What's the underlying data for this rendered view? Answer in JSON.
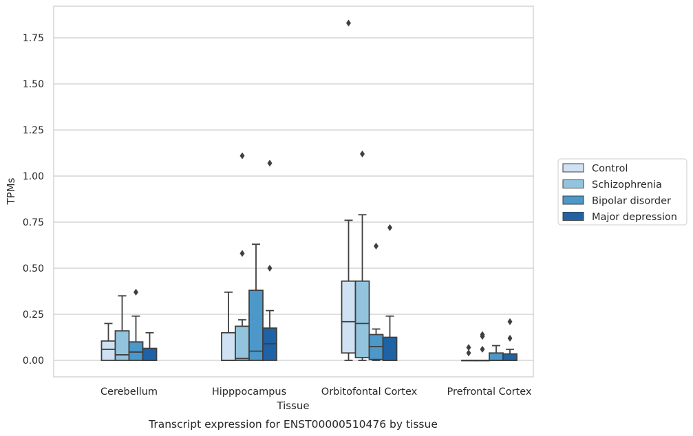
{
  "chart_data": {
    "type": "box",
    "title": "",
    "caption": "Transcript expression for ENST00000510476 by tissue",
    "xlabel": "Tissue",
    "ylabel": "TPMs",
    "ylim": [
      -0.09,
      1.93
    ],
    "yticks": [
      0.0,
      0.25,
      0.5,
      0.75,
      1.0,
      1.25,
      1.5,
      1.75
    ],
    "ytick_labels": [
      "0.00",
      "0.25",
      "0.50",
      "0.75",
      "1.00",
      "1.25",
      "1.50",
      "1.75"
    ],
    "grid": true,
    "legend_position": "right",
    "categories": [
      "Cerebellum",
      "Hipppocampus",
      "Orbitofontal Cortex",
      "Prefrontal Cortex"
    ],
    "series": [
      {
        "name": "Control",
        "color": "#cfe1f2",
        "boxes": [
          {
            "q1": 0.0,
            "median": 0.06,
            "q3": 0.105,
            "whislo": 0.0,
            "whishi": 0.2,
            "fliers": []
          },
          {
            "q1": 0.0,
            "median": 0.0,
            "q3": 0.15,
            "whislo": 0.0,
            "whishi": 0.37,
            "fliers": []
          },
          {
            "q1": 0.04,
            "median": 0.21,
            "q3": 0.43,
            "whislo": 0.0,
            "whishi": 0.76,
            "fliers": [
              1.83
            ]
          },
          {
            "q1": 0.0,
            "median": 0.0,
            "q3": 0.0,
            "whislo": 0.0,
            "whishi": 0.0,
            "fliers": [
              0.04,
              0.07
            ]
          }
        ]
      },
      {
        "name": "Schizophrenia",
        "color": "#93c4de",
        "boxes": [
          {
            "q1": 0.0,
            "median": 0.03,
            "q3": 0.16,
            "whislo": 0.0,
            "whishi": 0.35,
            "fliers": []
          },
          {
            "q1": 0.0,
            "median": 0.01,
            "q3": 0.185,
            "whislo": 0.0,
            "whishi": 0.22,
            "fliers": [
              0.58,
              1.11
            ]
          },
          {
            "q1": 0.015,
            "median": 0.2,
            "q3": 0.43,
            "whislo": 0.0,
            "whishi": 0.79,
            "fliers": [
              1.12
            ]
          },
          {
            "q1": 0.0,
            "median": 0.0,
            "q3": 0.0,
            "whislo": 0.0,
            "whishi": 0.0,
            "fliers": [
              0.06,
              0.13,
              0.14
            ]
          }
        ]
      },
      {
        "name": "Bipolar disorder",
        "color": "#4b98c9",
        "boxes": [
          {
            "q1": 0.0,
            "median": 0.045,
            "q3": 0.1,
            "whislo": 0.0,
            "whishi": 0.24,
            "fliers": [
              0.37
            ]
          },
          {
            "q1": 0.0,
            "median": 0.05,
            "q3": 0.38,
            "whislo": 0.0,
            "whishi": 0.63,
            "fliers": []
          },
          {
            "q1": 0.005,
            "median": 0.075,
            "q3": 0.14,
            "whislo": 0.0,
            "whishi": 0.17,
            "fliers": [
              0.62
            ]
          },
          {
            "q1": 0.0,
            "median": 0.0,
            "q3": 0.04,
            "whislo": 0.0,
            "whishi": 0.08,
            "fliers": []
          }
        ]
      },
      {
        "name": "Major depression",
        "color": "#1f62a6",
        "boxes": [
          {
            "q1": 0.0,
            "median": 0.0,
            "q3": 0.065,
            "whislo": 0.0,
            "whishi": 0.15,
            "fliers": []
          },
          {
            "q1": 0.0,
            "median": 0.09,
            "q3": 0.175,
            "whislo": 0.0,
            "whishi": 0.27,
            "fliers": [
              0.5,
              1.07
            ]
          },
          {
            "q1": 0.0,
            "median": 0.0,
            "q3": 0.125,
            "whislo": 0.0,
            "whishi": 0.24,
            "fliers": [
              0.72
            ]
          },
          {
            "q1": 0.0,
            "median": 0.0,
            "q3": 0.035,
            "whislo": 0.0,
            "whishi": 0.06,
            "fliers": [
              0.12,
              0.21
            ]
          }
        ]
      }
    ]
  }
}
